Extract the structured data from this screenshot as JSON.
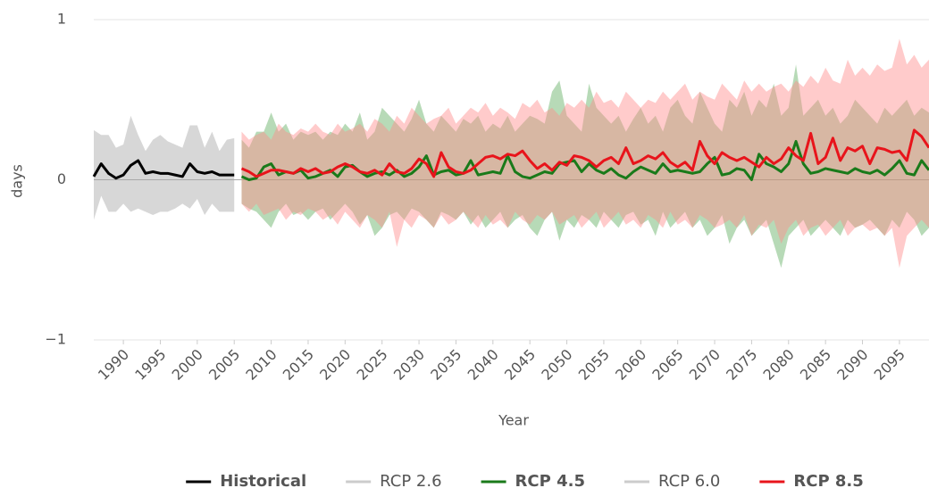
{
  "chart_data": {
    "type": "line",
    "y_label": "days",
    "x_label": "Year",
    "xlim": [
      1986,
      2099
    ],
    "ylim": [
      -1,
      1
    ],
    "yticks": [
      1,
      0,
      {
        "value": -1,
        "label": "−1"
      }
    ],
    "xticks": [
      1990,
      1995,
      2000,
      2005,
      2010,
      2015,
      2020,
      2025,
      2030,
      2035,
      2040,
      2045,
      2050,
      2055,
      2060,
      2065,
      2070,
      2075,
      2080,
      2085,
      2090,
      2095
    ],
    "grid": true,
    "legend": "bottom",
    "x": [
      1986,
      1987,
      1988,
      1989,
      1990,
      1991,
      1992,
      1993,
      1994,
      1995,
      1996,
      1997,
      1998,
      1999,
      2000,
      2001,
      2002,
      2003,
      2004,
      2005,
      2006,
      2007,
      2008,
      2009,
      2010,
      2011,
      2012,
      2013,
      2014,
      2015,
      2016,
      2017,
      2018,
      2019,
      2020,
      2021,
      2022,
      2023,
      2024,
      2025,
      2026,
      2027,
      2028,
      2029,
      2030,
      2031,
      2032,
      2033,
      2034,
      2035,
      2036,
      2037,
      2038,
      2039,
      2040,
      2041,
      2042,
      2043,
      2044,
      2045,
      2046,
      2047,
      2048,
      2049,
      2050,
      2051,
      2052,
      2053,
      2054,
      2055,
      2056,
      2057,
      2058,
      2059,
      2060,
      2061,
      2062,
      2063,
      2064,
      2065,
      2066,
      2067,
      2068,
      2069,
      2070,
      2071,
      2072,
      2073,
      2074,
      2075,
      2076,
      2077,
      2078,
      2079,
      2080,
      2081,
      2082,
      2083,
      2084,
      2085,
      2086,
      2087,
      2088,
      2089,
      2090,
      2091,
      2092,
      2093,
      2094,
      2095,
      2096,
      2097,
      2098,
      2099
    ],
    "series": [
      {
        "name": "Historical",
        "color": "#000000",
        "range_color": "#a6a6a6",
        "visible": true,
        "values": [
          0.02,
          0.1,
          0.04,
          0.01,
          0.03,
          0.09,
          0.12,
          0.04,
          0.05,
          0.04,
          0.04,
          0.03,
          0.02,
          0.1,
          0.05,
          0.04,
          0.05,
          0.03,
          0.03,
          0.03,
          null,
          null,
          null,
          null,
          null,
          null,
          null,
          null,
          null,
          null,
          null,
          null,
          null,
          null,
          null,
          null,
          null,
          null,
          null,
          null,
          null,
          null,
          null,
          null,
          null,
          null,
          null,
          null,
          null,
          null,
          null,
          null,
          null,
          null,
          null,
          null,
          null,
          null,
          null,
          null,
          null,
          null,
          null,
          null,
          null,
          null,
          null,
          null,
          null,
          null,
          null,
          null,
          null,
          null,
          null,
          null,
          null,
          null,
          null,
          null,
          null,
          null,
          null,
          null,
          null,
          null,
          null,
          null,
          null,
          null,
          null,
          null,
          null,
          null,
          null,
          null,
          null,
          null,
          null,
          null,
          null,
          null,
          null,
          null,
          null,
          null,
          null,
          null,
          null,
          null,
          null,
          null,
          null,
          null
        ],
        "range_low": [
          -0.25,
          -0.1,
          -0.2,
          -0.2,
          -0.15,
          -0.2,
          -0.18,
          -0.2,
          -0.22,
          -0.2,
          -0.2,
          -0.18,
          -0.15,
          -0.18,
          -0.12,
          -0.22,
          -0.15,
          -0.2,
          -0.2,
          -0.2,
          null,
          null,
          null,
          null,
          null,
          null,
          null,
          null,
          null,
          null,
          null,
          null,
          null,
          null,
          null,
          null,
          null,
          null,
          null,
          null,
          null,
          null,
          null,
          null,
          null,
          null,
          null,
          null,
          null,
          null,
          null,
          null,
          null,
          null,
          null,
          null,
          null,
          null,
          null,
          null,
          null,
          null,
          null,
          null,
          null,
          null,
          null,
          null,
          null,
          null,
          null,
          null,
          null,
          null,
          null,
          null,
          null,
          null,
          null,
          null,
          null,
          null,
          null,
          null,
          null,
          null,
          null,
          null,
          null,
          null,
          null,
          null,
          null,
          null,
          null,
          null,
          null,
          null,
          null,
          null,
          null,
          null,
          null,
          null,
          null,
          null,
          null,
          null,
          null,
          null,
          null,
          null,
          null,
          null
        ],
        "range_high": [
          0.31,
          0.28,
          0.28,
          0.2,
          0.22,
          0.4,
          0.28,
          0.18,
          0.25,
          0.28,
          0.24,
          0.22,
          0.2,
          0.34,
          0.34,
          0.2,
          0.3,
          0.18,
          0.25,
          0.26,
          null,
          null,
          null,
          null,
          null,
          null,
          null,
          null,
          null,
          null,
          null,
          null,
          null,
          null,
          null,
          null,
          null,
          null,
          null,
          null,
          null,
          null,
          null,
          null,
          null,
          null,
          null,
          null,
          null,
          null,
          null,
          null,
          null,
          null,
          null,
          null,
          null,
          null,
          null,
          null,
          null,
          null,
          null,
          null,
          null,
          null,
          null,
          null,
          null,
          null,
          null,
          null,
          null,
          null,
          null,
          null,
          null,
          null,
          null,
          null,
          null,
          null,
          null,
          null,
          null,
          null,
          null,
          null,
          null,
          null,
          null,
          null,
          null,
          null,
          null,
          null,
          null,
          null,
          null,
          null,
          null,
          null,
          null,
          null,
          null,
          null,
          null,
          null,
          null,
          null,
          null,
          null,
          null,
          null
        ]
      },
      {
        "name": "RCP 2.6",
        "color": "#cccccc",
        "visible": false
      },
      {
        "name": "RCP 4.5",
        "color": "#1a7a1a",
        "range_color": "#5fae5f",
        "visible": true,
        "values": [
          null,
          null,
          null,
          null,
          null,
          null,
          null,
          null,
          null,
          null,
          null,
          null,
          null,
          null,
          null,
          null,
          null,
          null,
          null,
          null,
          0.02,
          0.0,
          0.01,
          0.08,
          0.1,
          0.03,
          0.05,
          0.04,
          0.06,
          0.01,
          0.02,
          0.04,
          0.06,
          0.02,
          0.08,
          0.09,
          0.05,
          0.02,
          0.04,
          0.05,
          0.03,
          0.06,
          0.02,
          0.04,
          0.08,
          0.15,
          0.03,
          0.05,
          0.06,
          0.03,
          0.04,
          0.12,
          0.03,
          0.04,
          0.05,
          0.04,
          0.15,
          0.05,
          0.02,
          0.01,
          0.03,
          0.05,
          0.04,
          0.1,
          0.11,
          0.12,
          0.05,
          0.1,
          0.06,
          0.04,
          0.07,
          0.03,
          0.01,
          0.05,
          0.08,
          0.06,
          0.04,
          0.1,
          0.05,
          0.06,
          0.05,
          0.04,
          0.05,
          0.1,
          0.14,
          0.03,
          0.04,
          0.07,
          0.06,
          0.0,
          0.16,
          0.1,
          0.08,
          0.05,
          0.1,
          0.24,
          0.1,
          0.04,
          0.05,
          0.07,
          0.06,
          0.05,
          0.04,
          0.07,
          0.05,
          0.04,
          0.06,
          0.03,
          0.07,
          0.12,
          0.04,
          0.03,
          0.12,
          0.06
        ],
        "range_low": [
          null,
          null,
          null,
          null,
          null,
          null,
          null,
          null,
          null,
          null,
          null,
          null,
          null,
          null,
          null,
          null,
          null,
          null,
          null,
          null,
          -0.15,
          -0.18,
          -0.2,
          -0.25,
          -0.3,
          -0.2,
          -0.15,
          -0.22,
          -0.2,
          -0.25,
          -0.2,
          -0.18,
          -0.25,
          -0.2,
          -0.15,
          -0.2,
          -0.28,
          -0.22,
          -0.35,
          -0.3,
          -0.22,
          -0.2,
          -0.25,
          -0.18,
          -0.2,
          -0.25,
          -0.3,
          -0.2,
          -0.22,
          -0.25,
          -0.2,
          -0.28,
          -0.22,
          -0.3,
          -0.25,
          -0.2,
          -0.3,
          -0.25,
          -0.22,
          -0.3,
          -0.35,
          -0.25,
          -0.2,
          -0.38,
          -0.25,
          -0.3,
          -0.22,
          -0.25,
          -0.3,
          -0.2,
          -0.25,
          -0.3,
          -0.22,
          -0.2,
          -0.28,
          -0.25,
          -0.35,
          -0.2,
          -0.3,
          -0.25,
          -0.2,
          -0.3,
          -0.25,
          -0.35,
          -0.3,
          -0.22,
          -0.4,
          -0.3,
          -0.25,
          -0.35,
          -0.3,
          -0.25,
          -0.4,
          -0.55,
          -0.35,
          -0.3,
          -0.25,
          -0.35,
          -0.3,
          -0.25,
          -0.3,
          -0.35,
          -0.25,
          -0.3,
          -0.28,
          -0.25,
          -0.3,
          -0.35,
          -0.25,
          -0.3,
          -0.2,
          -0.25,
          -0.35,
          -0.3
        ],
        "range_high": [
          null,
          null,
          null,
          null,
          null,
          null,
          null,
          null,
          null,
          null,
          null,
          null,
          null,
          null,
          null,
          null,
          null,
          null,
          null,
          null,
          0.25,
          0.2,
          0.3,
          0.3,
          0.42,
          0.3,
          0.35,
          0.25,
          0.3,
          0.28,
          0.3,
          0.25,
          0.3,
          0.28,
          0.35,
          0.3,
          0.42,
          0.25,
          0.3,
          0.45,
          0.4,
          0.35,
          0.3,
          0.38,
          0.5,
          0.35,
          0.3,
          0.4,
          0.35,
          0.3,
          0.38,
          0.35,
          0.4,
          0.3,
          0.35,
          0.32,
          0.4,
          0.3,
          0.35,
          0.4,
          0.38,
          0.35,
          0.55,
          0.62,
          0.4,
          0.35,
          0.3,
          0.6,
          0.45,
          0.4,
          0.35,
          0.4,
          0.3,
          0.38,
          0.45,
          0.35,
          0.4,
          0.3,
          0.45,
          0.5,
          0.4,
          0.35,
          0.55,
          0.45,
          0.35,
          0.3,
          0.5,
          0.45,
          0.55,
          0.4,
          0.5,
          0.45,
          0.6,
          0.4,
          0.45,
          0.72,
          0.4,
          0.45,
          0.5,
          0.4,
          0.45,
          0.35,
          0.4,
          0.5,
          0.45,
          0.4,
          0.35,
          0.45,
          0.4,
          0.45,
          0.5,
          0.4,
          0.45,
          0.42
        ]
      },
      {
        "name": "RCP 6.0",
        "color": "#cccccc",
        "visible": false
      },
      {
        "name": "RCP 8.5",
        "color": "#e8141b",
        "range_color": "#ff8c8c",
        "visible": true,
        "values": [
          null,
          null,
          null,
          null,
          null,
          null,
          null,
          null,
          null,
          null,
          null,
          null,
          null,
          null,
          null,
          null,
          null,
          null,
          null,
          null,
          0.07,
          0.05,
          0.02,
          0.04,
          0.06,
          0.06,
          0.05,
          0.04,
          0.07,
          0.05,
          0.07,
          0.04,
          0.05,
          0.08,
          0.1,
          0.08,
          0.05,
          0.04,
          0.06,
          0.03,
          0.1,
          0.05,
          0.04,
          0.07,
          0.13,
          0.1,
          0.02,
          0.17,
          0.08,
          0.05,
          0.04,
          0.06,
          0.1,
          0.14,
          0.15,
          0.13,
          0.16,
          0.15,
          0.18,
          0.12,
          0.07,
          0.1,
          0.06,
          0.11,
          0.09,
          0.15,
          0.14,
          0.12,
          0.08,
          0.12,
          0.14,
          0.1,
          0.2,
          0.1,
          0.12,
          0.15,
          0.13,
          0.17,
          0.11,
          0.08,
          0.11,
          0.06,
          0.24,
          0.15,
          0.1,
          0.17,
          0.14,
          0.12,
          0.14,
          0.11,
          0.08,
          0.14,
          0.1,
          0.13,
          0.2,
          0.15,
          0.12,
          0.29,
          0.1,
          0.14,
          0.26,
          0.12,
          0.2,
          0.18,
          0.21,
          0.1,
          0.2,
          0.19,
          0.17,
          0.18,
          0.12,
          0.31,
          0.27,
          0.2
        ],
        "range_low": [
          null,
          null,
          null,
          null,
          null,
          null,
          null,
          null,
          null,
          null,
          null,
          null,
          null,
          null,
          null,
          null,
          null,
          null,
          null,
          null,
          -0.15,
          -0.2,
          -0.15,
          -0.22,
          -0.2,
          -0.18,
          -0.25,
          -0.2,
          -0.22,
          -0.18,
          -0.2,
          -0.25,
          -0.22,
          -0.28,
          -0.2,
          -0.25,
          -0.3,
          -0.22,
          -0.25,
          -0.3,
          -0.2,
          -0.42,
          -0.25,
          -0.3,
          -0.22,
          -0.25,
          -0.3,
          -0.22,
          -0.28,
          -0.25,
          -0.2,
          -0.25,
          -0.3,
          -0.22,
          -0.28,
          -0.25,
          -0.3,
          -0.2,
          -0.25,
          -0.28,
          -0.22,
          -0.25,
          -0.2,
          -0.28,
          -0.25,
          -0.22,
          -0.3,
          -0.25,
          -0.2,
          -0.3,
          -0.25,
          -0.2,
          -0.28,
          -0.25,
          -0.3,
          -0.22,
          -0.25,
          -0.3,
          -0.2,
          -0.28,
          -0.25,
          -0.3,
          -0.22,
          -0.25,
          -0.3,
          -0.28,
          -0.25,
          -0.3,
          -0.22,
          -0.35,
          -0.28,
          -0.3,
          -0.25,
          -0.4,
          -0.3,
          -0.25,
          -0.35,
          -0.3,
          -0.28,
          -0.35,
          -0.3,
          -0.25,
          -0.35,
          -0.3,
          -0.28,
          -0.32,
          -0.3,
          -0.35,
          -0.3,
          -0.55,
          -0.35,
          -0.3,
          -0.25,
          -0.3
        ],
        "range_high": [
          null,
          null,
          null,
          null,
          null,
          null,
          null,
          null,
          null,
          null,
          null,
          null,
          null,
          null,
          null,
          null,
          null,
          null,
          null,
          null,
          0.3,
          0.25,
          0.28,
          0.3,
          0.25,
          0.35,
          0.3,
          0.28,
          0.32,
          0.3,
          0.35,
          0.3,
          0.28,
          0.35,
          0.3,
          0.32,
          0.35,
          0.3,
          0.38,
          0.35,
          0.3,
          0.4,
          0.35,
          0.45,
          0.4,
          0.35,
          0.38,
          0.4,
          0.45,
          0.35,
          0.4,
          0.45,
          0.42,
          0.48,
          0.4,
          0.45,
          0.42,
          0.38,
          0.48,
          0.45,
          0.5,
          0.42,
          0.45,
          0.4,
          0.48,
          0.45,
          0.5,
          0.45,
          0.55,
          0.48,
          0.5,
          0.45,
          0.55,
          0.5,
          0.45,
          0.5,
          0.48,
          0.55,
          0.5,
          0.55,
          0.6,
          0.5,
          0.55,
          0.52,
          0.5,
          0.6,
          0.55,
          0.5,
          0.62,
          0.55,
          0.6,
          0.55,
          0.58,
          0.6,
          0.55,
          0.62,
          0.58,
          0.65,
          0.6,
          0.7,
          0.62,
          0.6,
          0.75,
          0.65,
          0.7,
          0.65,
          0.72,
          0.68,
          0.7,
          0.88,
          0.72,
          0.78,
          0.7,
          0.75
        ]
      }
    ]
  }
}
